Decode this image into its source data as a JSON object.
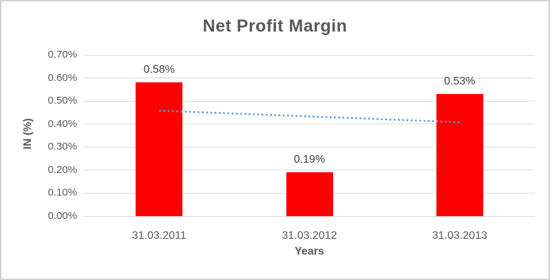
{
  "chart_data": {
    "type": "bar",
    "title": "Net Profit Margin",
    "xlabel": "Years",
    "ylabel": "IN (%)",
    "categories": [
      "31.03.2011",
      "31.03.2012",
      "31.03.2013"
    ],
    "values": [
      0.58,
      0.19,
      0.53
    ],
    "data_labels": [
      "0.58%",
      "0.19%",
      "0.53%"
    ],
    "ylim": [
      0,
      0.7
    ],
    "yticks": [
      0,
      0.1,
      0.2,
      0.3,
      0.4,
      0.5,
      0.6,
      0.7
    ],
    "ytick_labels": [
      "0.00%",
      "0.10%",
      "0.20%",
      "0.30%",
      "0.40%",
      "0.50%",
      "0.60%",
      "0.70%"
    ],
    "grid": true,
    "legend": false,
    "trendline": {
      "type": "linear",
      "style": "dotted",
      "start_value": 0.458,
      "end_value": 0.408
    },
    "colors": {
      "bar": "#ff0000",
      "trendline": "#5b9bd5",
      "gridline": "#d9d9d9",
      "title_text": "#595959",
      "axis_text": "#595959",
      "data_label_text": "#404040",
      "border": "#cfcfcf",
      "background": "#ffffff"
    }
  }
}
